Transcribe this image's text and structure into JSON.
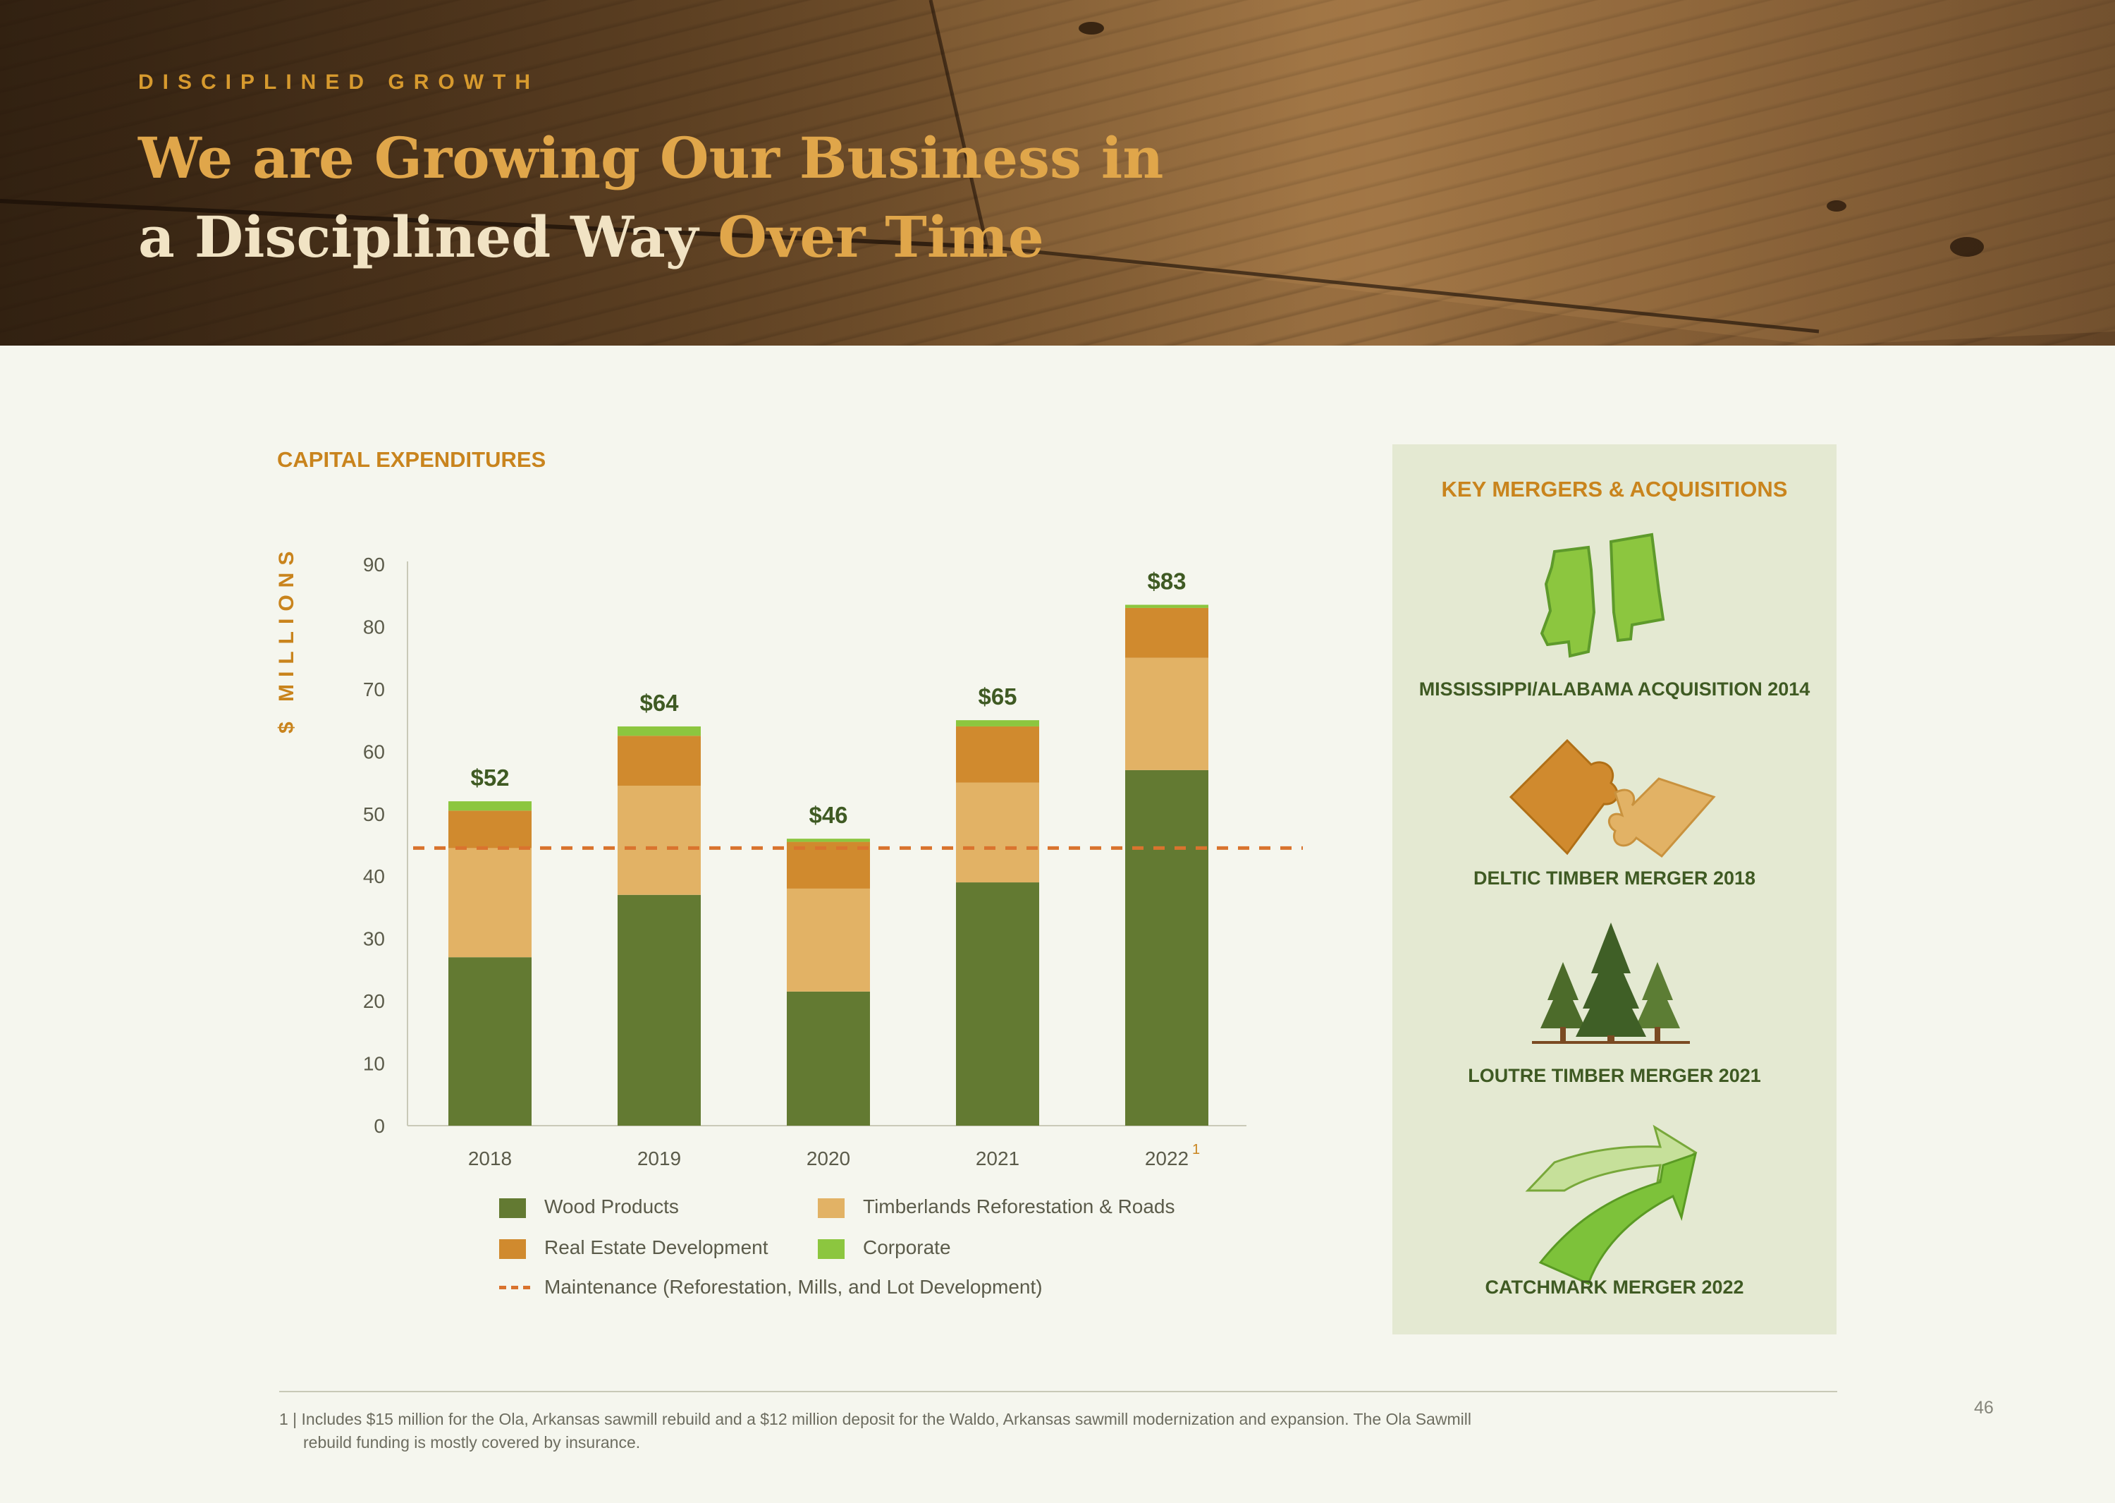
{
  "header": {
    "eyebrow": "DISCIPLINED GROWTH",
    "title_line1": "We are Growing Our Business in",
    "title_line2_start": "a Disciplined Way",
    "title_line2_highlight": "Over Time"
  },
  "chart_data": {
    "type": "bar",
    "stacked": true,
    "title": "CAPITAL EXPENDITURES",
    "ylabel": "$ MILLIONS",
    "xlabel": "",
    "ylim": [
      0,
      90
    ],
    "yticks": [
      0,
      10,
      20,
      30,
      40,
      50,
      60,
      70,
      80,
      90
    ],
    "categories": [
      "2018",
      "2019",
      "2020",
      "2021",
      "2022"
    ],
    "category_superscripts": [
      "",
      "",
      "",
      "",
      "1"
    ],
    "series": [
      {
        "name": "Wood Products",
        "color": "#637a32",
        "values": [
          27,
          37,
          21.5,
          39,
          57
        ]
      },
      {
        "name": "Timberlands Reforestation & Roads",
        "color": "#e2b265",
        "values": [
          17.5,
          17.5,
          16.5,
          16,
          18
        ]
      },
      {
        "name": "Real Estate Development",
        "color": "#d08a2e",
        "values": [
          6,
          8,
          7.5,
          9,
          8
        ]
      },
      {
        "name": "Corporate",
        "color": "#8cc63f",
        "values": [
          1.5,
          1.5,
          0.5,
          1,
          0.5
        ]
      }
    ],
    "totals": [
      "$52",
      "$64",
      "$46",
      "$65",
      "$83"
    ],
    "reference_line": {
      "name": "Maintenance (Reforestation, Mills, and Lot Development)",
      "value": 44.5,
      "color": "#d9732e",
      "style": "dashed"
    },
    "grid": false,
    "legend_position": "bottom"
  },
  "panel": {
    "title": "KEY MERGERS & ACQUISITIONS",
    "deals": [
      {
        "label": "MISSISSIPPI/ALABAMA ACQUISITION  2014",
        "icon": "mississippi-alabama-map-icon"
      },
      {
        "label": "DELTIC TIMBER MERGER  2018",
        "icon": "puzzle-pieces-icon"
      },
      {
        "label": "LOUTRE TIMBER MERGER  2021",
        "icon": "pine-trees-icon"
      },
      {
        "label": "CATCHMARK MERGER  2022",
        "icon": "merging-arrows-icon"
      }
    ]
  },
  "footnote": {
    "line1": "1 | Includes $15 million for the Ola, Arkansas sawmill rebuild and a $12 million deposit for the Waldo, Arkansas sawmill modernization and expansion. The Ola Sawmill",
    "line2": "rebuild funding is mostly covered by insurance."
  },
  "page_number": "46"
}
